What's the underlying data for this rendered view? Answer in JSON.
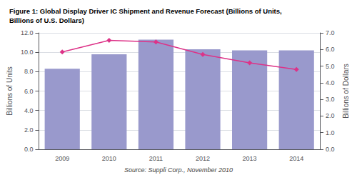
{
  "chart_data": {
    "type": "bar",
    "title": "Figure 1: Global Display Driver IC Shipment and Revenue Forecast (Billions of Units,\nBillions of U.S. Dollars)",
    "categories": [
      "2009",
      "2010",
      "2011",
      "2012",
      "2013",
      "2014"
    ],
    "series": [
      {
        "type": "bar",
        "color": "#9999cc",
        "values": [
          8.3,
          9.8,
          11.3,
          10.3,
          10.2,
          10.2
        ]
      },
      {
        "type": "line",
        "axis": "y2",
        "color": "#dd3388",
        "marker": "diamond",
        "values": [
          5.85,
          6.55,
          6.45,
          5.7,
          5.2,
          4.8
        ]
      }
    ],
    "ylabel": "Billions of Units",
    "y2label": "Billions of Dollars",
    "ylim": [
      0,
      12
    ],
    "yticks": [
      {
        "value": 0,
        "label": "0.0"
      },
      {
        "value": 2,
        "label": "2.0"
      },
      {
        "value": 4,
        "label": "4.0"
      },
      {
        "value": 6,
        "label": "6.0"
      },
      {
        "value": 8,
        "label": "8.0"
      },
      {
        "value": 10,
        "label": "10.0"
      },
      {
        "value": 12,
        "label": "12.0"
      }
    ],
    "y2lim": [
      0.0,
      7.0
    ],
    "y2ticks": [
      {
        "value": 0,
        "label": "0.0"
      },
      {
        "value": 1,
        "label": "1.0"
      },
      {
        "value": 2,
        "label": "2.0"
      },
      {
        "value": 3,
        "label": "3.0"
      },
      {
        "value": 4,
        "label": "4.0"
      },
      {
        "value": 5,
        "label": "5.0"
      },
      {
        "value": 6,
        "label": "6.0"
      },
      {
        "value": 7,
        "label": "7.0"
      }
    ],
    "grid": true,
    "annotations": [
      "Source: Suppli Corp., November 2010"
    ]
  }
}
